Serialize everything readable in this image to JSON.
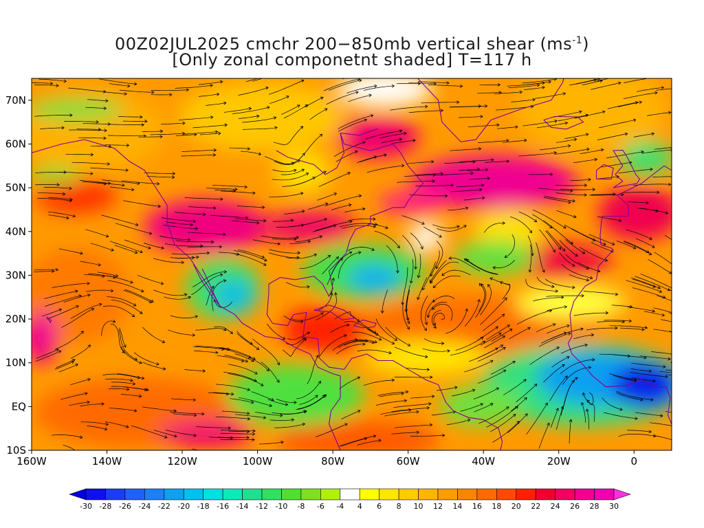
{
  "title": {
    "line1_prefix": "00Z02JUL2025 cmchr 200−850mb vertical shear (ms",
    "line1_sup": "-1",
    "line1_suffix": ")",
    "line2": "[Only zonal componetnt shaded] T=117 h"
  },
  "map": {
    "lon_range": [
      -160,
      10
    ],
    "lat_range": [
      -10,
      75
    ],
    "lon_ticks": [
      {
        "value": -160,
        "label": "160W"
      },
      {
        "value": -140,
        "label": "140W"
      },
      {
        "value": -120,
        "label": "120W"
      },
      {
        "value": -100,
        "label": "100W"
      },
      {
        "value": -80,
        "label": "80W"
      },
      {
        "value": -60,
        "label": "60W"
      },
      {
        "value": -40,
        "label": "40W"
      },
      {
        "value": -20,
        "label": "20W"
      },
      {
        "value": 0,
        "label": "0"
      }
    ],
    "lat_ticks": [
      {
        "value": 70,
        "label": "70N"
      },
      {
        "value": 60,
        "label": "60N"
      },
      {
        "value": 50,
        "label": "50N"
      },
      {
        "value": 40,
        "label": "40N"
      },
      {
        "value": 30,
        "label": "30N"
      },
      {
        "value": 20,
        "label": "20N"
      },
      {
        "value": 10,
        "label": "10N"
      },
      {
        "value": 0,
        "label": "EQ"
      },
      {
        "value": -10,
        "label": "10S"
      }
    ]
  },
  "colorbar": {
    "labels": [
      "-30",
      "-28",
      "-26",
      "-24",
      "-22",
      "-20",
      "-18",
      "-16",
      "-14",
      "-12",
      "-10",
      "-8",
      "-6",
      "-4",
      "4",
      "6",
      "8",
      "10",
      "12",
      "14",
      "16",
      "18",
      "20",
      "22",
      "24",
      "26",
      "28",
      "30"
    ],
    "colors": [
      "#1010e8",
      "#1c3cf0",
      "#2060f8",
      "#1c80f8",
      "#10a0f0",
      "#00c0f0",
      "#00e0e0",
      "#10e8b8",
      "#20e090",
      "#30e060",
      "#50e030",
      "#80e020",
      "#b0f010",
      "#ffffff",
      "#ffff00",
      "#ffe600",
      "#ffcc00",
      "#ffb400",
      "#ff9c00",
      "#ff8400",
      "#ff6a00",
      "#ff4a00",
      "#ff2000",
      "#f00030",
      "#f00060",
      "#f00090",
      "#f000b0"
    ],
    "low_arrow_color": "#0000e0",
    "high_arrow_color": "#ff30e0"
  }
}
